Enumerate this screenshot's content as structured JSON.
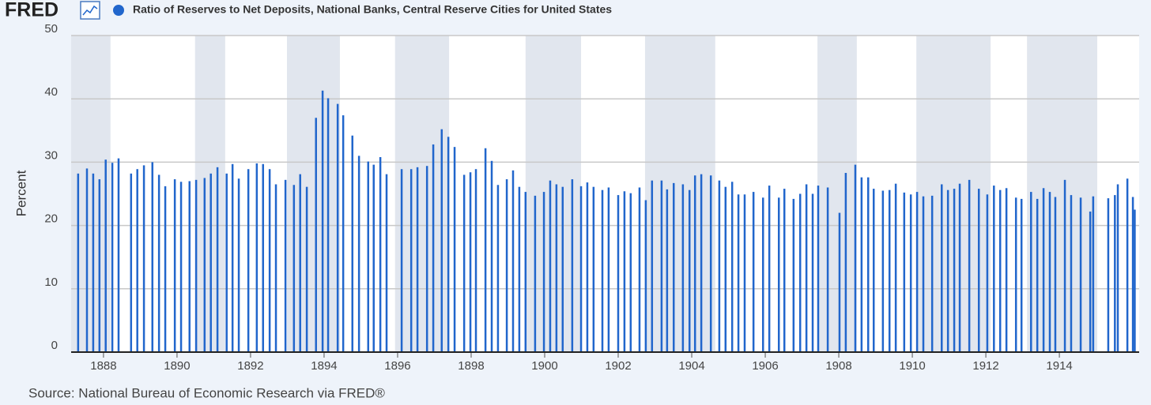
{
  "chart_data": {
    "type": "bar",
    "logo": "FRED",
    "title": "Ratio of Reserves to Net Deposits, National Banks, Central Reserve Cities for United States",
    "source": "Source: National Bureau of Economic Research via FRED®",
    "ylabel": "Percent",
    "x": [
      1887.31,
      1887.55,
      1887.72,
      1887.89,
      1888.06,
      1888.24,
      1888.41,
      1888.75,
      1888.92,
      1889.1,
      1889.33,
      1889.51,
      1889.68,
      1889.94,
      1890.11,
      1890.34,
      1890.52,
      1890.75,
      1890.92,
      1891.1,
      1891.35,
      1891.51,
      1891.68,
      1891.94,
      1892.17,
      1892.34,
      1892.52,
      1892.69,
      1892.95,
      1893.18,
      1893.35,
      1893.53,
      1893.78,
      1893.96,
      1894.11,
      1894.37,
      1894.52,
      1894.77,
      1894.95,
      1895.2,
      1895.35,
      1895.53,
      1895.7,
      1896.11,
      1896.37,
      1896.54,
      1896.8,
      1896.97,
      1897.2,
      1897.38,
      1897.55,
      1897.81,
      1897.98,
      1898.13,
      1898.39,
      1898.56,
      1898.73,
      1898.97,
      1899.14,
      1899.31,
      1899.48,
      1899.74,
      1899.98,
      1900.15,
      1900.32,
      1900.49,
      1900.75,
      1900.99,
      1901.16,
      1901.33,
      1901.57,
      1901.74,
      1902.0,
      1902.17,
      1902.34,
      1902.58,
      1902.75,
      1902.92,
      1903.18,
      1903.33,
      1903.51,
      1903.76,
      1903.94,
      1904.09,
      1904.26,
      1904.52,
      1904.75,
      1904.92,
      1905.1,
      1905.27,
      1905.44,
      1905.68,
      1905.94,
      1906.11,
      1906.37,
      1906.52,
      1906.77,
      1906.95,
      1907.12,
      1907.29,
      1907.44,
      1907.7,
      1908.02,
      1908.19,
      1908.45,
      1908.62,
      1908.8,
      1908.95,
      1909.2,
      1909.38,
      1909.55,
      1909.78,
      1909.96,
      1910.13,
      1910.3,
      1910.54,
      1910.8,
      1910.97,
      1911.14,
      1911.29,
      1911.55,
      1911.81,
      1912.04,
      1912.22,
      1912.39,
      1912.56,
      1912.82,
      1912.97,
      1913.23,
      1913.4,
      1913.57,
      1913.74,
      1913.89,
      1914.15,
      1914.32,
      1914.58,
      1914.84,
      1914.92,
      1915.33,
      1915.51,
      1915.59,
      1915.85,
      1916.0,
      1916.05
    ],
    "series": [
      {
        "name": "Ratio of Reserves to Net Deposits, National Banks, Central Reserve Cities for United States",
        "color": "#2166cc",
        "values": [
          28.2,
          29.0,
          28.2,
          27.3,
          30.4,
          29.9,
          30.6,
          28.2,
          28.9,
          29.5,
          30.0,
          28.0,
          26.2,
          27.3,
          26.9,
          27.0,
          27.2,
          27.5,
          28.2,
          29.2,
          28.2,
          29.7,
          27.4,
          28.9,
          29.8,
          29.7,
          28.9,
          26.5,
          27.2,
          26.4,
          28.1,
          26.1,
          37.0,
          41.3,
          40.1,
          39.2,
          37.4,
          34.2,
          31.0,
          30.1,
          29.6,
          30.8,
          28.1,
          28.9,
          28.9,
          29.2,
          29.4,
          32.8,
          35.2,
          34.0,
          32.4,
          28.0,
          28.4,
          28.9,
          32.2,
          30.2,
          26.4,
          27.3,
          28.7,
          26.1,
          25.3,
          24.7,
          25.3,
          27.1,
          26.5,
          26.1,
          27.3,
          26.2,
          26.8,
          26.1,
          25.6,
          26.0,
          24.8,
          25.4,
          25.1,
          26.0,
          24.0,
          27.1,
          27.1,
          25.7,
          26.7,
          26.5,
          25.6,
          27.9,
          28.1,
          27.9,
          27.1,
          26.1,
          26.9,
          24.9,
          24.9,
          25.3,
          24.4,
          26.3,
          24.4,
          25.8,
          24.2,
          25.0,
          26.5,
          25.0,
          26.3,
          26.0,
          22.0,
          28.3,
          29.6,
          27.6,
          27.6,
          25.8,
          25.5,
          25.6,
          26.6,
          25.2,
          24.9,
          25.3,
          24.6,
          24.7,
          26.5,
          25.6,
          25.8,
          26.6,
          27.2,
          25.8,
          24.9,
          26.3,
          25.6,
          25.9,
          24.4,
          24.2,
          25.3,
          24.2,
          25.9,
          25.3,
          24.5,
          27.2,
          24.8,
          24.4,
          22.2,
          24.6,
          24.3,
          24.8,
          26.5,
          27.4,
          24.5,
          22.5
        ]
      }
    ],
    "xlim": [
      1887.12,
      1916.17
    ],
    "xticks": [
      1888,
      1890,
      1892,
      1894,
      1896,
      1898,
      1900,
      1902,
      1904,
      1906,
      1908,
      1910,
      1912,
      1914
    ],
    "ylim": [
      0,
      50
    ],
    "yticks": [
      0,
      10,
      20,
      30,
      40,
      50
    ],
    "grid": true,
    "recessions": [
      [
        1887.12,
        1888.19
      ],
      [
        1890.49,
        1891.31
      ],
      [
        1892.99,
        1894.43
      ],
      [
        1895.93,
        1897.4
      ],
      [
        1899.48,
        1900.99
      ],
      [
        1902.73,
        1904.64
      ],
      [
        1907.42,
        1908.49
      ],
      [
        1910.11,
        1912.13
      ],
      [
        1913.12,
        1915.03
      ]
    ]
  }
}
